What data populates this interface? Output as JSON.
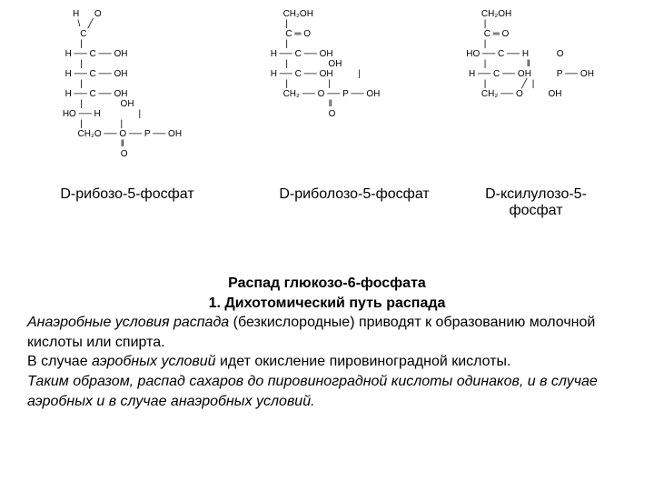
{
  "structures": {
    "ribose": "     H      O\n       \\   ╱\n        C\n        |\n  H ── C ── OH\n        |\n  H ── C ── OH\n        |\n  H ── C ── OH\n        |               OH\n HO ── H               |\n        |               |\n       CH₂O ── O ── P ── OH\n                        ‖\n                        O",
    "ribulose": "       CH₂OH\n        |\n        C ═ O\n        |\n  H ── C ── OH\n        |                OH\n  H ── C ── OH          |\n        |                |\n       CH₂ ── O ── P ── OH\n                         ‖\n                         O",
    "xylulose": "       CH₂OH\n        |\n        C ═ O\n        |\n HO ── C ── H           O\n        |                ‖\n  H ── C ── OH          P ── OH\n        |              ╱  |\n       CH₂ ── O          OH"
  },
  "labels": {
    "ribose": "D-рибозо-5-фосфат",
    "ribulose": "D-риболозо-5-фосфат",
    "xylulose": "D-ксилулозо-5-фосфат"
  },
  "text": {
    "title": "Распад глюкозо-6-фосфата",
    "subtitle": "1. Дихотомический путь распада",
    "line1a": "Анаэробные условия распада",
    "line1b": " (безкислородные) приводят к образованию молочной кислоты или спирта.",
    "line2a": "В случае ",
    "line2b": "аэробных условий",
    "line2c": " идет окисление пировиноградной кислоты.",
    "line3": "Таким образом, распад сахаров до пировиноградной кислоты одинаков, и в случае аэробных и в случае анаэробных условий."
  },
  "colors": {
    "background": "#ffffff",
    "text": "#000000"
  },
  "fonts": {
    "body_size": 16,
    "structure_size": 10
  }
}
